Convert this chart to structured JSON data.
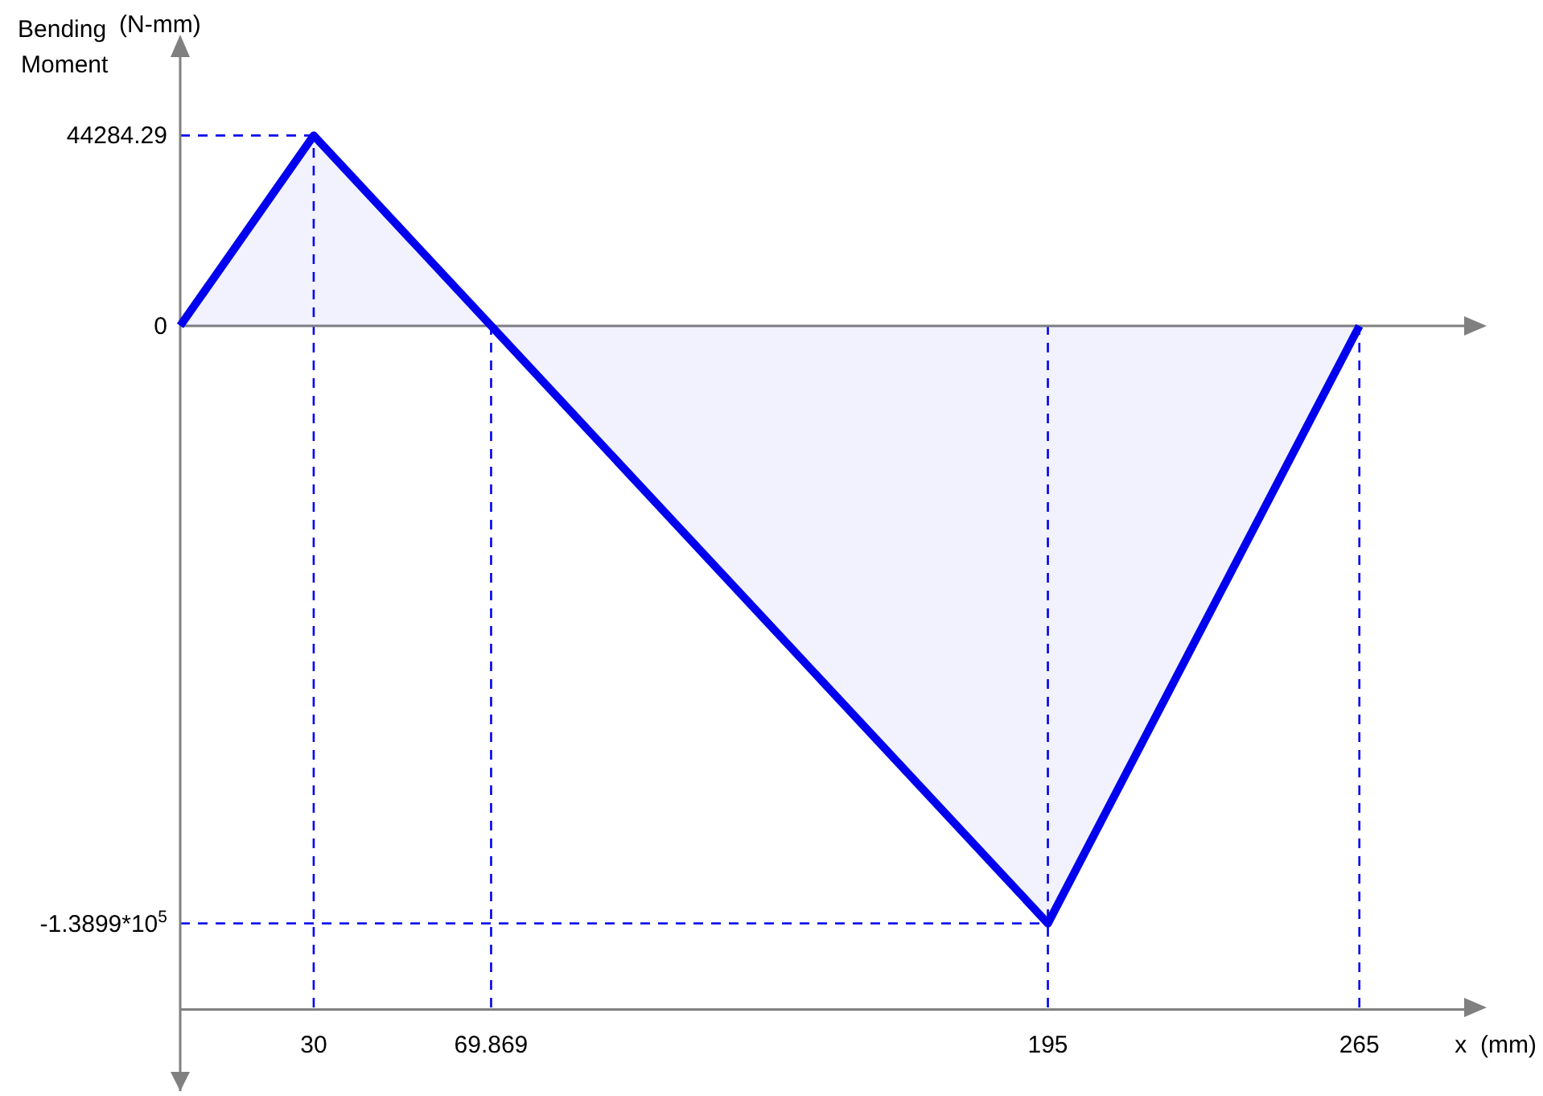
{
  "chart_data": {
    "type": "area",
    "xlabel": "x  (mm)",
    "ylabel": "Bending Moment",
    "annotations": [
      "(N-mm)"
    ],
    "x": [
      0,
      30,
      69.869,
      195,
      265
    ],
    "series": [
      {
        "color": "#0000ee",
        "values": [
          0,
          44284.29,
          0,
          -138990,
          0
        ]
      }
    ],
    "xlim": [
      0,
      290
    ],
    "ylim": [
      -178000,
      64000
    ],
    "xticks": [
      30,
      69.869,
      195,
      265
    ],
    "yticks": [
      44284.29,
      0,
      {
        "value": -138990,
        "label": "-1.3899*10$^{5}$"
      }
    ],
    "ref_lines": [
      {
        "axis": "x",
        "value": 30,
        "color": "#0000ee",
        "line_style": "dashed"
      },
      {
        "axis": "x",
        "value": 69.869,
        "color": "#0000ee",
        "line_style": "dashed"
      },
      {
        "axis": "x",
        "value": 195,
        "color": "#0000ee",
        "line_style": "dashed"
      },
      {
        "axis": "x",
        "value": 265,
        "color": "#0000ee",
        "line_style": "dashed"
      },
      {
        "axis": "y",
        "value": 44284.29,
        "color": "#0000ee",
        "line_style": "dashed"
      },
      {
        "axis": "y",
        "value": -138990,
        "color": "#0000ee",
        "line_style": "dashed"
      },
      {
        "axis": "y",
        "value": -159000,
        "color": "#808080",
        "line_style": "solid"
      }
    ],
    "line_style": "solid",
    "marker": "none"
  }
}
